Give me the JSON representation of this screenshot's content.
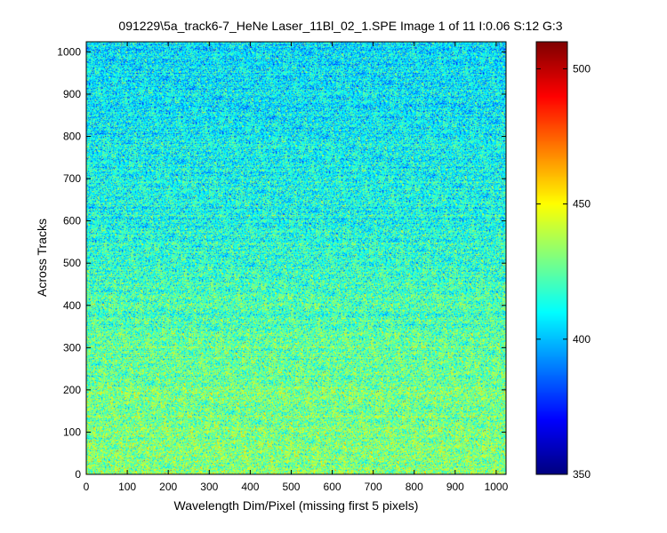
{
  "chart_data": {
    "type": "heatmap",
    "title": "091229\\5a_track6-7_HeNe Laser_11Bl_02_1.SPE  Image 1 of 11  I:0.06  S:12  G:3",
    "xlabel": "Wavelength Dim/Pixel (missing first 5 pixels)",
    "ylabel": "Across Tracks",
    "xlim": [
      0,
      1024
    ],
    "ylim": [
      0,
      1024
    ],
    "x_ticks": [
      0,
      100,
      200,
      300,
      400,
      500,
      600,
      700,
      800,
      900,
      1000
    ],
    "y_ticks": [
      0,
      100,
      200,
      300,
      400,
      500,
      600,
      700,
      800,
      900,
      1000
    ],
    "colorbar": {
      "colormap": "jet",
      "clim": [
        350,
        510
      ],
      "ticks": [
        350,
        400,
        450,
        500
      ]
    },
    "intensity_profile": {
      "description_rows": [
        0,
        100,
        200,
        300,
        400,
        500,
        600,
        700,
        800,
        900,
        1024
      ],
      "mean_values": [
        432,
        430,
        428,
        425,
        421,
        418,
        414,
        412,
        410,
        408,
        407
      ]
    },
    "noise_level": 14
  }
}
